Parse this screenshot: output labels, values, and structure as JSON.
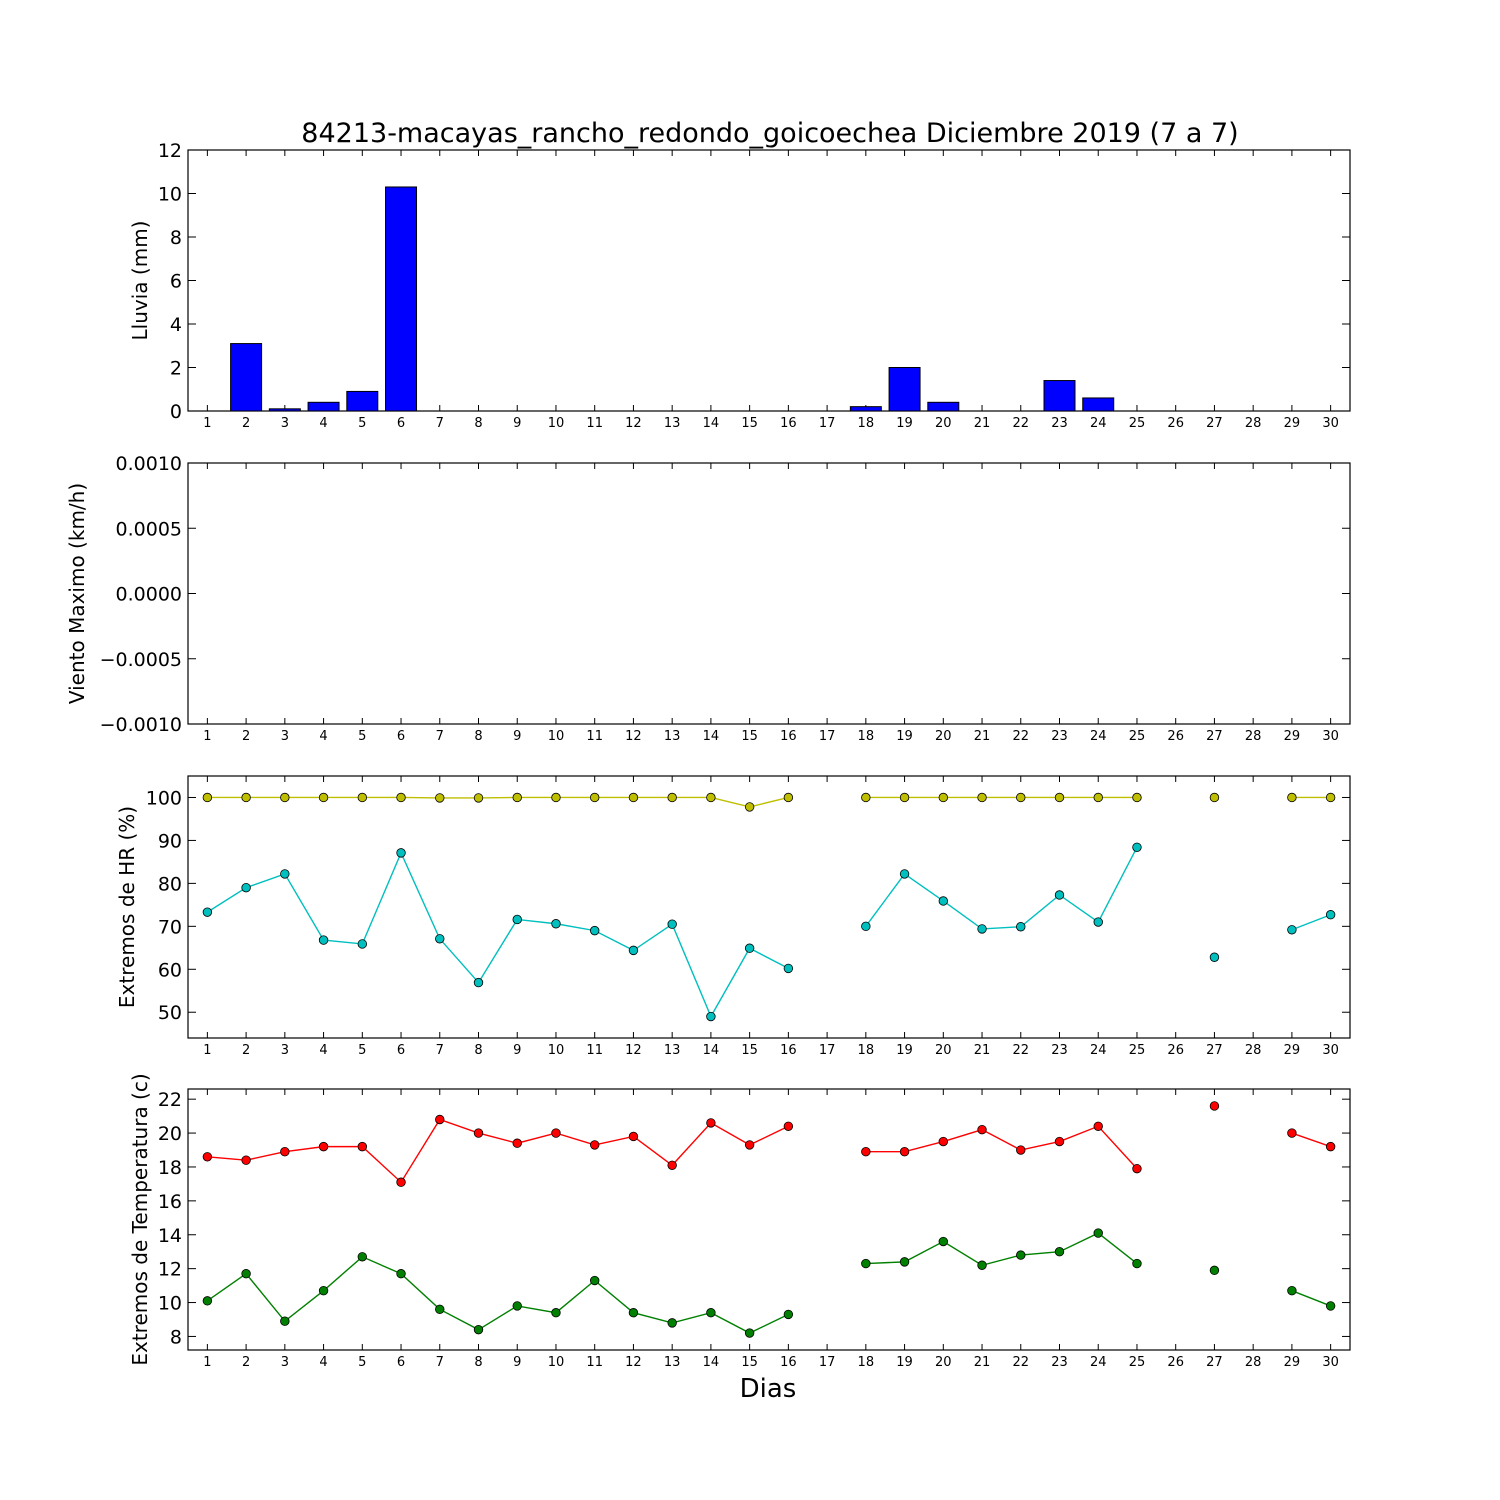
{
  "title": "84213-macayas_rancho_redondo_goicoechea Diciembre 2019  (7 a 7)",
  "xlabel": "Dias",
  "colors": {
    "bar": "#0000ff",
    "hr_max": "#bfbf00",
    "hr_min": "#00bfbf",
    "t_max": "#ff0000",
    "t_min": "#008000"
  },
  "chart_data": [
    {
      "type": "bar",
      "ylabel": "Lluvia (mm)",
      "ylim": [
        0,
        12
      ],
      "yticks": [
        "0",
        "2",
        "4",
        "6",
        "8",
        "10",
        "12"
      ],
      "x": [
        1,
        2,
        3,
        4,
        5,
        6,
        7,
        8,
        9,
        10,
        11,
        12,
        13,
        14,
        15,
        16,
        18,
        19,
        20,
        21,
        22,
        23,
        24,
        25,
        26,
        27,
        28,
        29,
        30
      ],
      "xtick_labels": [
        "1",
        "2",
        "3",
        "4",
        "5",
        "6",
        "7",
        "8",
        "9",
        "10",
        "11",
        "12",
        "13",
        "14",
        "15",
        "16",
        "17",
        "18",
        "19",
        "20",
        "21",
        "22",
        "23",
        "24",
        "25",
        "26",
        "27",
        "28",
        "29",
        "30"
      ],
      "values": [
        0,
        3.1,
        0.1,
        0.4,
        0.9,
        10.3,
        0,
        0,
        0,
        0,
        0,
        0,
        0,
        0,
        0,
        0,
        0.2,
        2.0,
        0.4,
        0,
        0,
        1.4,
        0.6,
        0,
        0,
        0,
        0,
        0,
        0
      ]
    },
    {
      "type": "line",
      "ylabel": "Viento Maximo (km/h)",
      "ylim": [
        -0.001,
        0.001
      ],
      "yticks": [
        "−0.0010",
        "−0.0005",
        "0.0000",
        "0.0005",
        "0.0010"
      ],
      "xtick_labels": [
        "1",
        "2",
        "3",
        "4",
        "5",
        "6",
        "7",
        "8",
        "9",
        "10",
        "11",
        "12",
        "13",
        "14",
        "15",
        "16",
        "17",
        "18",
        "19",
        "20",
        "21",
        "22",
        "23",
        "24",
        "25",
        "26",
        "27",
        "28",
        "29",
        "30"
      ],
      "series": []
    },
    {
      "type": "line",
      "ylabel": "Extremos de HR (%)",
      "ylim": [
        44,
        105
      ],
      "yticks": [
        "50",
        "60",
        "70",
        "80",
        "90",
        "100"
      ],
      "xtick_labels": [
        "1",
        "2",
        "3",
        "4",
        "5",
        "6",
        "7",
        "8",
        "9",
        "10",
        "11",
        "12",
        "13",
        "14",
        "15",
        "16",
        "17",
        "18",
        "19",
        "20",
        "21",
        "22",
        "23",
        "24",
        "25",
        "26",
        "27",
        "28",
        "29",
        "30"
      ],
      "x": [
        1,
        2,
        3,
        4,
        5,
        6,
        7,
        8,
        9,
        10,
        11,
        12,
        13,
        14,
        15,
        16,
        17,
        18,
        19,
        20,
        21,
        22,
        23,
        24,
        25,
        26,
        27,
        28,
        29,
        30
      ],
      "series": [
        {
          "values": [
            100,
            100,
            100,
            100,
            100,
            100,
            99.9,
            99.9,
            100,
            100,
            100,
            100,
            100,
            100,
            97.8,
            100,
            null,
            100,
            100,
            100,
            100,
            100,
            100,
            100,
            100,
            null,
            100,
            null,
            100,
            100
          ]
        },
        {
          "values": [
            73.3,
            79,
            82.2,
            66.8,
            65.9,
            87.1,
            67.1,
            56.9,
            71.6,
            70.6,
            69,
            64.4,
            70.5,
            49,
            64.9,
            60.2,
            null,
            70,
            82.2,
            75.9,
            69.4,
            69.9,
            77.3,
            71,
            88.4,
            null,
            62.8,
            null,
            69.2,
            72.7
          ]
        }
      ]
    },
    {
      "type": "line",
      "ylabel": "Extremos de Temperatura (c)",
      "ylim": [
        7.2,
        22.6
      ],
      "yticks": [
        "8",
        "10",
        "12",
        "14",
        "16",
        "18",
        "20",
        "22"
      ],
      "xtick_labels": [
        "1",
        "2",
        "3",
        "4",
        "5",
        "6",
        "7",
        "8",
        "9",
        "10",
        "11",
        "12",
        "13",
        "14",
        "15",
        "16",
        "17",
        "18",
        "19",
        "20",
        "21",
        "22",
        "23",
        "24",
        "25",
        "26",
        "27",
        "28",
        "29",
        "30"
      ],
      "x": [
        1,
        2,
        3,
        4,
        5,
        6,
        7,
        8,
        9,
        10,
        11,
        12,
        13,
        14,
        15,
        16,
        17,
        18,
        19,
        20,
        21,
        22,
        23,
        24,
        25,
        26,
        27,
        28,
        29,
        30
      ],
      "series": [
        {
          "values": [
            18.6,
            18.4,
            18.9,
            19.2,
            19.2,
            17.1,
            20.8,
            20,
            19.4,
            20,
            19.3,
            19.8,
            18.1,
            20.6,
            19.3,
            20.4,
            null,
            18.9,
            18.9,
            19.5,
            20.2,
            19,
            19.5,
            20.4,
            17.9,
            null,
            21.6,
            null,
            20,
            19.2
          ]
        },
        {
          "values": [
            10.1,
            11.7,
            8.9,
            10.7,
            12.7,
            11.7,
            9.6,
            8.4,
            9.8,
            9.4,
            11.3,
            9.4,
            8.8,
            9.4,
            8.2,
            9.3,
            null,
            12.3,
            12.4,
            13.6,
            12.2,
            12.8,
            13,
            14.1,
            12.3,
            null,
            11.9,
            null,
            10.7,
            9.8
          ]
        }
      ]
    }
  ]
}
